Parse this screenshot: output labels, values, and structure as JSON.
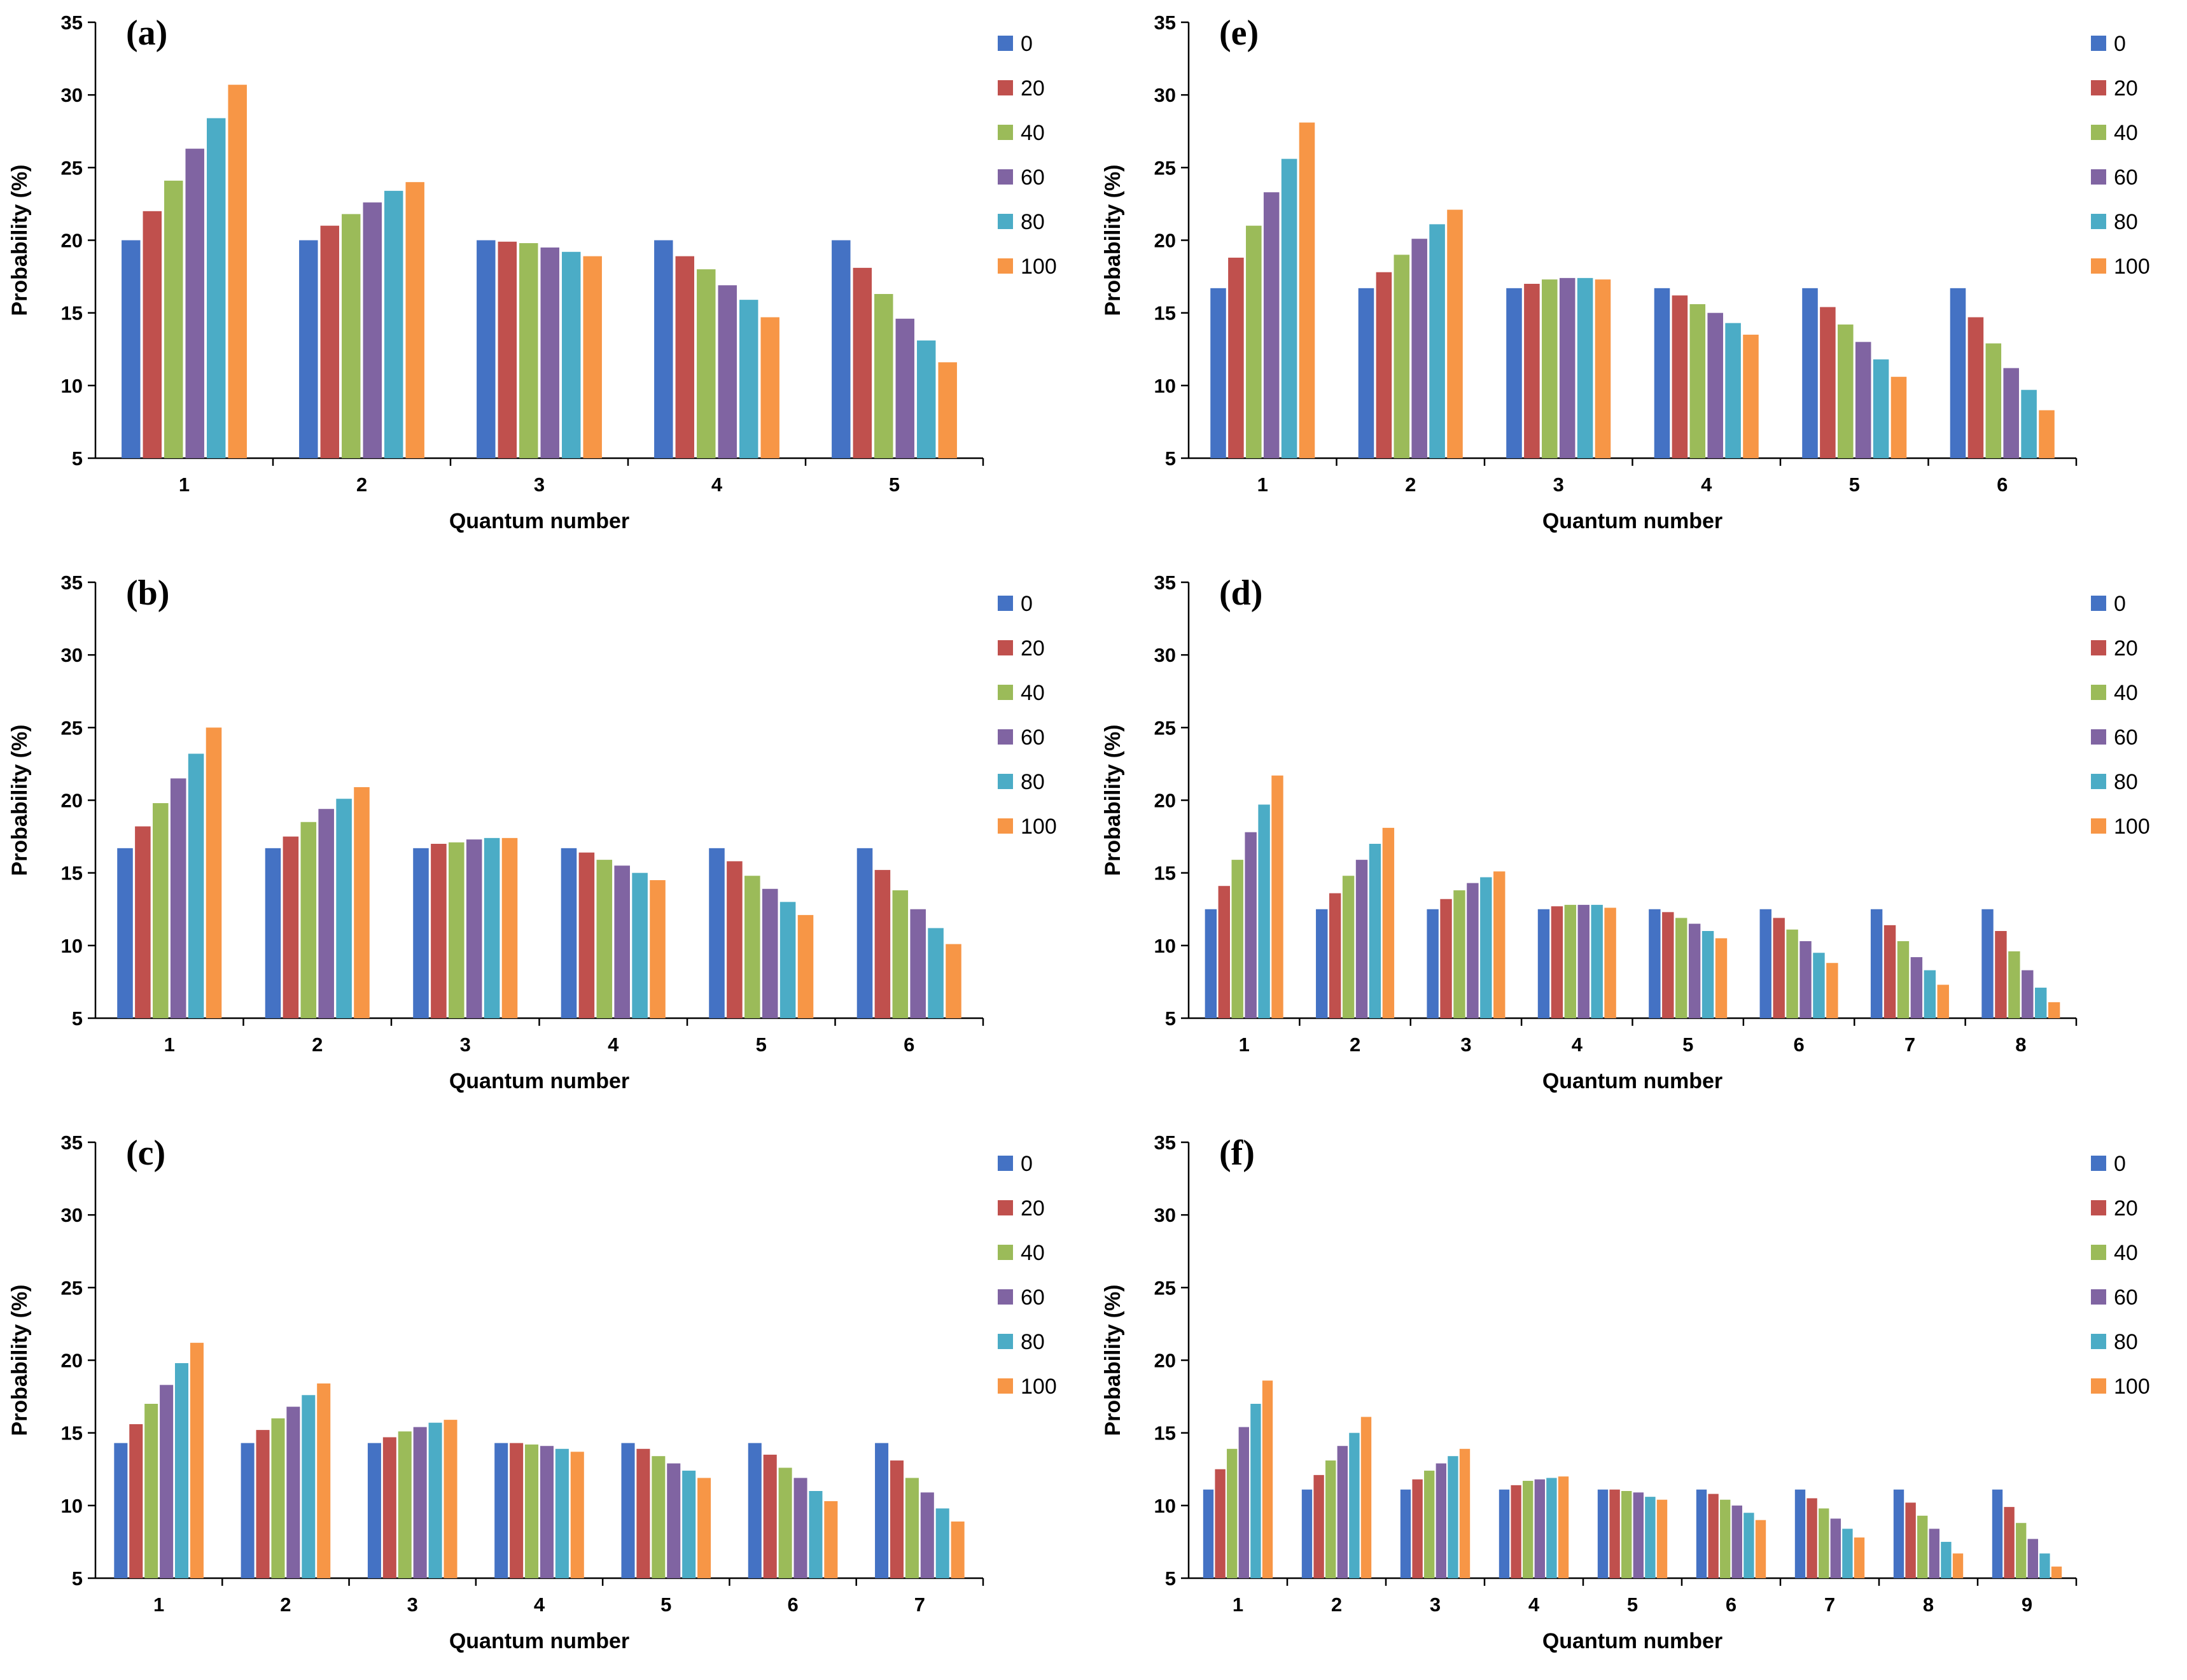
{
  "figure_title": "",
  "series_colors": [
    "#4472C4",
    "#C0504D",
    "#9BBB59",
    "#8064A2",
    "#4BACC6",
    "#F79646"
  ],
  "chart_data": [
    {
      "type": "bar",
      "panel_label": "(a)",
      "xlabel": "Quantum number",
      "ylabel": "Probability (%)",
      "ylim": [
        5,
        35
      ],
      "yticks": [
        5,
        10,
        15,
        20,
        25,
        30,
        35
      ],
      "categories": [
        "1",
        "2",
        "3",
        "4",
        "5"
      ],
      "series": [
        {
          "name": "0",
          "values": [
            20.0,
            20.0,
            20.0,
            20.0,
            20.0
          ]
        },
        {
          "name": "20",
          "values": [
            22.0,
            21.0,
            19.9,
            18.9,
            18.1
          ]
        },
        {
          "name": "40",
          "values": [
            24.1,
            21.8,
            19.8,
            18.0,
            16.3
          ]
        },
        {
          "name": "60",
          "values": [
            26.3,
            22.6,
            19.5,
            16.9,
            14.6
          ]
        },
        {
          "name": "80",
          "values": [
            28.4,
            23.4,
            19.2,
            15.9,
            13.1
          ]
        },
        {
          "name": "100",
          "values": [
            30.7,
            24.0,
            18.9,
            14.7,
            11.6
          ]
        }
      ]
    },
    {
      "type": "bar",
      "panel_label": "(e)",
      "xlabel": "Quantum number",
      "ylabel": "Probability (%)",
      "ylim": [
        5,
        35
      ],
      "yticks": [
        5,
        10,
        15,
        20,
        25,
        30,
        35
      ],
      "categories": [
        "1",
        "2",
        "3",
        "4",
        "5",
        "6"
      ],
      "series": [
        {
          "name": "0",
          "values": [
            16.7,
            16.7,
            16.7,
            16.7,
            16.7,
            16.7
          ]
        },
        {
          "name": "20",
          "values": [
            18.8,
            17.8,
            17.0,
            16.2,
            15.4,
            14.7
          ]
        },
        {
          "name": "40",
          "values": [
            21.0,
            19.0,
            17.3,
            15.6,
            14.2,
            12.9
          ]
        },
        {
          "name": "60",
          "values": [
            23.3,
            20.1,
            17.4,
            15.0,
            13.0,
            11.2
          ]
        },
        {
          "name": "80",
          "values": [
            25.6,
            21.1,
            17.4,
            14.3,
            11.8,
            9.7
          ]
        },
        {
          "name": "100",
          "values": [
            28.1,
            22.1,
            17.3,
            13.5,
            10.6,
            8.3
          ]
        }
      ]
    },
    {
      "type": "bar",
      "panel_label": "(b)",
      "xlabel": "Quantum number",
      "ylabel": "Probability (%)",
      "ylim": [
        5,
        35
      ],
      "yticks": [
        5,
        10,
        15,
        20,
        25,
        30,
        35
      ],
      "categories": [
        "1",
        "2",
        "3",
        "4",
        "5",
        "6"
      ],
      "series": [
        {
          "name": "0",
          "values": [
            16.7,
            16.7,
            16.7,
            16.7,
            16.7,
            16.7
          ]
        },
        {
          "name": "20",
          "values": [
            18.2,
            17.5,
            17.0,
            16.4,
            15.8,
            15.2
          ]
        },
        {
          "name": "40",
          "values": [
            19.8,
            18.5,
            17.1,
            15.9,
            14.8,
            13.8
          ]
        },
        {
          "name": "60",
          "values": [
            21.5,
            19.4,
            17.3,
            15.5,
            13.9,
            12.5
          ]
        },
        {
          "name": "80",
          "values": [
            23.2,
            20.1,
            17.4,
            15.0,
            13.0,
            11.2
          ]
        },
        {
          "name": "100",
          "values": [
            25.0,
            20.9,
            17.4,
            14.5,
            12.1,
            10.1
          ]
        }
      ]
    },
    {
      "type": "bar",
      "panel_label": "(d)",
      "xlabel": "Quantum number",
      "ylabel": "Probability (%)",
      "ylim": [
        5,
        35
      ],
      "yticks": [
        5,
        10,
        15,
        20,
        25,
        30,
        35
      ],
      "categories": [
        "1",
        "2",
        "3",
        "4",
        "5",
        "6",
        "7",
        "8"
      ],
      "series": [
        {
          "name": "0",
          "values": [
            12.5,
            12.5,
            12.5,
            12.5,
            12.5,
            12.5,
            12.5,
            12.5
          ]
        },
        {
          "name": "20",
          "values": [
            14.1,
            13.6,
            13.2,
            12.7,
            12.3,
            11.9,
            11.4,
            11.0
          ]
        },
        {
          "name": "40",
          "values": [
            15.9,
            14.8,
            13.8,
            12.8,
            11.9,
            11.1,
            10.3,
            9.6
          ]
        },
        {
          "name": "60",
          "values": [
            17.8,
            15.9,
            14.3,
            12.8,
            11.5,
            10.3,
            9.2,
            8.3
          ]
        },
        {
          "name": "80",
          "values": [
            19.7,
            17.0,
            14.7,
            12.8,
            11.0,
            9.5,
            8.3,
            7.1
          ]
        },
        {
          "name": "100",
          "values": [
            21.7,
            18.1,
            15.1,
            12.6,
            10.5,
            8.8,
            7.3,
            6.1
          ]
        }
      ]
    },
    {
      "type": "bar",
      "panel_label": "(c)",
      "xlabel": "Quantum number",
      "ylabel": "Probability (%)",
      "ylim": [
        5,
        35
      ],
      "yticks": [
        5,
        10,
        15,
        20,
        25,
        30,
        35
      ],
      "categories": [
        "1",
        "2",
        "3",
        "4",
        "5",
        "6",
        "7"
      ],
      "series": [
        {
          "name": "0",
          "values": [
            14.3,
            14.3,
            14.3,
            14.3,
            14.3,
            14.3,
            14.3
          ]
        },
        {
          "name": "20",
          "values": [
            15.6,
            15.2,
            14.7,
            14.3,
            13.9,
            13.5,
            13.1
          ]
        },
        {
          "name": "40",
          "values": [
            17.0,
            16.0,
            15.1,
            14.2,
            13.4,
            12.6,
            11.9
          ]
        },
        {
          "name": "60",
          "values": [
            18.3,
            16.8,
            15.4,
            14.1,
            12.9,
            11.9,
            10.9
          ]
        },
        {
          "name": "80",
          "values": [
            19.8,
            17.6,
            15.7,
            13.9,
            12.4,
            11.0,
            9.8
          ]
        },
        {
          "name": "100",
          "values": [
            21.2,
            18.4,
            15.9,
            13.7,
            11.9,
            10.3,
            8.9
          ]
        }
      ]
    },
    {
      "type": "bar",
      "panel_label": "(f)",
      "xlabel": "Quantum number",
      "ylabel": "Probability (%)",
      "ylim": [
        5,
        35
      ],
      "yticks": [
        5,
        10,
        15,
        20,
        25,
        30,
        35
      ],
      "categories": [
        "1",
        "2",
        "3",
        "4",
        "5",
        "6",
        "7",
        "8",
        "9"
      ],
      "series": [
        {
          "name": "0",
          "values": [
            11.1,
            11.1,
            11.1,
            11.1,
            11.1,
            11.1,
            11.1,
            11.1,
            11.1
          ]
        },
        {
          "name": "20",
          "values": [
            12.5,
            12.1,
            11.8,
            11.4,
            11.1,
            10.8,
            10.5,
            10.2,
            9.9
          ]
        },
        {
          "name": "40",
          "values": [
            13.9,
            13.1,
            12.4,
            11.7,
            11.0,
            10.4,
            9.8,
            9.3,
            8.8
          ]
        },
        {
          "name": "60",
          "values": [
            15.4,
            14.1,
            12.9,
            11.8,
            10.9,
            10.0,
            9.1,
            8.4,
            7.7
          ]
        },
        {
          "name": "80",
          "values": [
            17.0,
            15.0,
            13.4,
            11.9,
            10.6,
            9.5,
            8.4,
            7.5,
            6.7
          ]
        },
        {
          "name": "100",
          "values": [
            18.6,
            16.1,
            13.9,
            12.0,
            10.4,
            9.0,
            7.8,
            6.7,
            5.8
          ]
        }
      ]
    }
  ]
}
